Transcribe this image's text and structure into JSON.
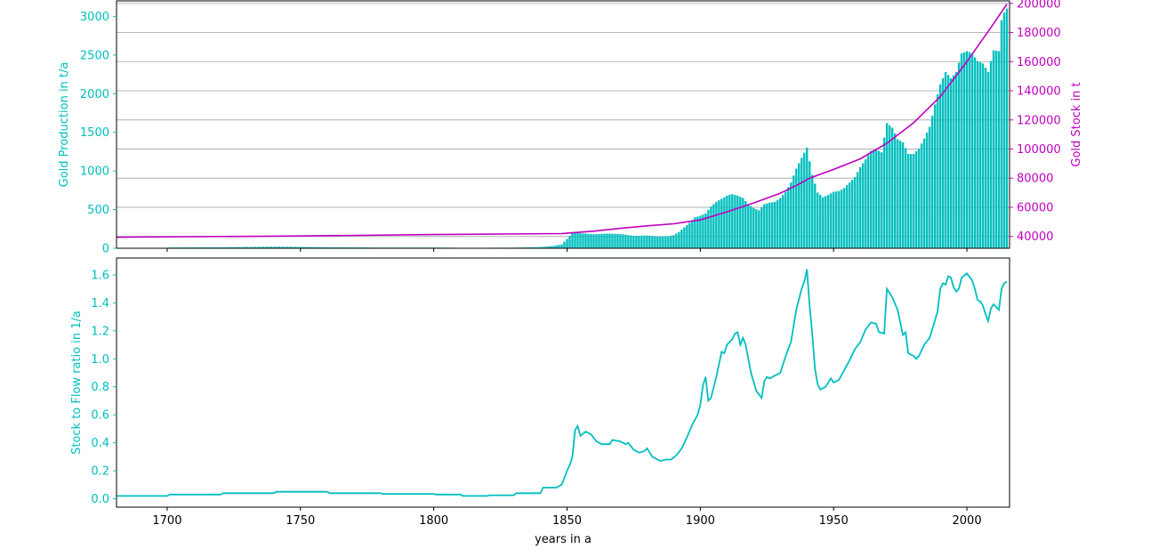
{
  "chart_data": [
    {
      "type": "bar",
      "title": "",
      "xlabel": "",
      "ylabel": "Gold Production in t/a",
      "y2label": "Gold Stock in t",
      "xlim": [
        1681,
        2016
      ],
      "ylim": [
        0,
        3200
      ],
      "y2lim": [
        31900,
        201700
      ],
      "xticks": [
        1700,
        1750,
        1800,
        1850,
        1900,
        1950,
        2000
      ],
      "yticks": [
        0,
        500,
        1000,
        1500,
        2000,
        2500,
        3000
      ],
      "y2ticks": [
        40000,
        60000,
        80000,
        100000,
        120000,
        140000,
        160000,
        180000,
        200000
      ],
      "grid": "horizontal (right axis)",
      "colors": {
        "production": "#00bfbf",
        "stock": "#bf00bf"
      },
      "production_per_year": [
        [
          1701,
          10
        ],
        [
          1720,
          12
        ],
        [
          1741,
          20
        ],
        [
          1761,
          12
        ],
        [
          1781,
          9
        ],
        [
          1801,
          9
        ],
        [
          1811,
          5
        ],
        [
          1821,
          6
        ],
        [
          1830,
          8
        ],
        [
          1840,
          15
        ],
        [
          1845,
          30
        ],
        [
          1848,
          50
        ],
        [
          1850,
          120
        ],
        [
          1851,
          160
        ],
        [
          1852,
          200
        ],
        [
          1853,
          210
        ],
        [
          1855,
          195
        ],
        [
          1860,
          180
        ],
        [
          1865,
          190
        ],
        [
          1870,
          185
        ],
        [
          1875,
          160
        ],
        [
          1880,
          165
        ],
        [
          1885,
          150
        ],
        [
          1888,
          155
        ],
        [
          1890,
          170
        ],
        [
          1892,
          210
        ],
        [
          1894,
          270
        ],
        [
          1896,
          330
        ],
        [
          1898,
          400
        ],
        [
          1900,
          420
        ],
        [
          1902,
          450
        ],
        [
          1904,
          540
        ],
        [
          1906,
          600
        ],
        [
          1908,
          640
        ],
        [
          1910,
          680
        ],
        [
          1912,
          700
        ],
        [
          1914,
          680
        ],
        [
          1916,
          650
        ],
        [
          1918,
          570
        ],
        [
          1920,
          520
        ],
        [
          1922,
          490
        ],
        [
          1924,
          570
        ],
        [
          1926,
          590
        ],
        [
          1928,
          600
        ],
        [
          1930,
          650
        ],
        [
          1932,
          730
        ],
        [
          1934,
          850
        ],
        [
          1936,
          1030
        ],
        [
          1938,
          1170
        ],
        [
          1940,
          1300
        ],
        [
          1942,
          950
        ],
        [
          1944,
          720
        ],
        [
          1946,
          660
        ],
        [
          1948,
          690
        ],
        [
          1950,
          730
        ],
        [
          1952,
          740
        ],
        [
          1954,
          780
        ],
        [
          1956,
          850
        ],
        [
          1958,
          920
        ],
        [
          1960,
          1050
        ],
        [
          1962,
          1150
        ],
        [
          1964,
          1260
        ],
        [
          1966,
          1280
        ],
        [
          1968,
          1240
        ],
        [
          1970,
          1620
        ],
        [
          1972,
          1560
        ],
        [
          1974,
          1410
        ],
        [
          1976,
          1370
        ],
        [
          1978,
          1220
        ],
        [
          1980,
          1220
        ],
        [
          1982,
          1290
        ],
        [
          1984,
          1420
        ],
        [
          1986,
          1570
        ],
        [
          1988,
          1860
        ],
        [
          1990,
          2120
        ],
        [
          1992,
          2280
        ],
        [
          1994,
          2200
        ],
        [
          1996,
          2280
        ],
        [
          1998,
          2520
        ],
        [
          2000,
          2550
        ],
        [
          2002,
          2520
        ],
        [
          2004,
          2420
        ],
        [
          2006,
          2390
        ],
        [
          2008,
          2280
        ],
        [
          2010,
          2560
        ],
        [
          2012,
          2550
        ],
        [
          2013,
          2950
        ],
        [
          2014,
          3050
        ],
        [
          2015,
          3100
        ]
      ],
      "stock_series": {
        "name": "",
        "points": [
          [
            1681,
            39500
          ],
          [
            1750,
            40300
          ],
          [
            1800,
            41300
          ],
          [
            1848,
            42000
          ],
          [
            1860,
            43600
          ],
          [
            1870,
            45600
          ],
          [
            1880,
            47300
          ],
          [
            1890,
            48700
          ],
          [
            1900,
            51300
          ],
          [
            1910,
            56900
          ],
          [
            1920,
            63000
          ],
          [
            1930,
            69700
          ],
          [
            1937,
            75800
          ],
          [
            1941,
            80000
          ],
          [
            1950,
            86000
          ],
          [
            1960,
            93300
          ],
          [
            1970,
            104000
          ],
          [
            1980,
            118000
          ],
          [
            1990,
            136000
          ],
          [
            2000,
            160000
          ],
          [
            2010,
            186000
          ],
          [
            2015,
            199500
          ]
        ]
      }
    },
    {
      "type": "line",
      "title": "",
      "xlabel": "years in a",
      "ylabel": "Stock to Flow ratio in 1/a",
      "xlim": [
        1681,
        2016
      ],
      "ylim": [
        -0.06,
        1.72
      ],
      "xticks": [
        1700,
        1750,
        1800,
        1850,
        1900,
        1950,
        2000
      ],
      "yticks": [
        0.0,
        0.2,
        0.4,
        0.6,
        0.8,
        1.0,
        1.2,
        1.4,
        1.6
      ],
      "ytick_labels": [
        "0.0",
        "0.2",
        "0.4",
        "0.6",
        "0.8",
        "1.0",
        "1.2",
        "1.4",
        "1.6"
      ],
      "color": "#00bfbf",
      "series": [
        {
          "name": "",
          "points": [
            [
              1681,
              0.02
            ],
            [
              1700,
              0.02
            ],
            [
              1701,
              0.03
            ],
            [
              1720,
              0.03
            ],
            [
              1721,
              0.04
            ],
            [
              1740,
              0.04
            ],
            [
              1741,
              0.05
            ],
            [
              1760,
              0.05
            ],
            [
              1761,
              0.04
            ],
            [
              1780,
              0.04
            ],
            [
              1781,
              0.035
            ],
            [
              1800,
              0.035
            ],
            [
              1801,
              0.03
            ],
            [
              1810,
              0.03
            ],
            [
              1811,
              0.02
            ],
            [
              1820,
              0.02
            ],
            [
              1821,
              0.025
            ],
            [
              1830,
              0.025
            ],
            [
              1831,
              0.04
            ],
            [
              1840,
              0.04
            ],
            [
              1841,
              0.08
            ],
            [
              1846,
              0.08
            ],
            [
              1848,
              0.1
            ],
            [
              1850,
              0.2
            ],
            [
              1851,
              0.24
            ],
            [
              1852,
              0.3
            ],
            [
              1853,
              0.49
            ],
            [
              1854,
              0.52
            ],
            [
              1855,
              0.45
            ],
            [
              1857,
              0.48
            ],
            [
              1859,
              0.46
            ],
            [
              1861,
              0.41
            ],
            [
              1863,
              0.39
            ],
            [
              1866,
              0.39
            ],
            [
              1867,
              0.42
            ],
            [
              1870,
              0.41
            ],
            [
              1872,
              0.39
            ],
            [
              1873,
              0.4
            ],
            [
              1875,
              0.35
            ],
            [
              1877,
              0.33
            ],
            [
              1879,
              0.34
            ],
            [
              1880,
              0.36
            ],
            [
              1882,
              0.3
            ],
            [
              1885,
              0.27
            ],
            [
              1887,
              0.28
            ],
            [
              1889,
              0.28
            ],
            [
              1891,
              0.31
            ],
            [
              1893,
              0.36
            ],
            [
              1895,
              0.44
            ],
            [
              1897,
              0.53
            ],
            [
              1899,
              0.6
            ],
            [
              1900,
              0.67
            ],
            [
              1901,
              0.81
            ],
            [
              1902,
              0.87
            ],
            [
              1903,
              0.7
            ],
            [
              1904,
              0.72
            ],
            [
              1906,
              0.87
            ],
            [
              1908,
              1.05
            ],
            [
              1909,
              1.04
            ],
            [
              1910,
              1.1
            ],
            [
              1912,
              1.14
            ],
            [
              1913,
              1.18
            ],
            [
              1914,
              1.19
            ],
            [
              1915,
              1.1
            ],
            [
              1916,
              1.15
            ],
            [
              1917,
              1.1
            ],
            [
              1919,
              0.9
            ],
            [
              1921,
              0.77
            ],
            [
              1923,
              0.72
            ],
            [
              1924,
              0.84
            ],
            [
              1925,
              0.87
            ],
            [
              1926,
              0.86
            ],
            [
              1928,
              0.88
            ],
            [
              1930,
              0.9
            ],
            [
              1932,
              1.02
            ],
            [
              1934,
              1.12
            ],
            [
              1936,
              1.35
            ],
            [
              1938,
              1.5
            ],
            [
              1939,
              1.55
            ],
            [
              1940,
              1.64
            ],
            [
              1941,
              1.38
            ],
            [
              1942,
              1.18
            ],
            [
              1943,
              0.93
            ],
            [
              1944,
              0.82
            ],
            [
              1945,
              0.78
            ],
            [
              1947,
              0.8
            ],
            [
              1949,
              0.86
            ],
            [
              1950,
              0.83
            ],
            [
              1952,
              0.85
            ],
            [
              1954,
              0.92
            ],
            [
              1956,
              0.99
            ],
            [
              1958,
              1.07
            ],
            [
              1960,
              1.12
            ],
            [
              1962,
              1.21
            ],
            [
              1964,
              1.26
            ],
            [
              1966,
              1.25
            ],
            [
              1967,
              1.19
            ],
            [
              1969,
              1.18
            ],
            [
              1970,
              1.5
            ],
            [
              1972,
              1.44
            ],
            [
              1974,
              1.35
            ],
            [
              1976,
              1.17
            ],
            [
              1977,
              1.19
            ],
            [
              1978,
              1.04
            ],
            [
              1980,
              1.02
            ],
            [
              1981,
              1.0
            ],
            [
              1982,
              1.02
            ],
            [
              1984,
              1.1
            ],
            [
              1986,
              1.15
            ],
            [
              1987,
              1.21
            ],
            [
              1989,
              1.34
            ],
            [
              1990,
              1.5
            ],
            [
              1991,
              1.54
            ],
            [
              1992,
              1.53
            ],
            [
              1993,
              1.59
            ],
            [
              1994,
              1.58
            ],
            [
              1995,
              1.51
            ],
            [
              1996,
              1.48
            ],
            [
              1997,
              1.5
            ],
            [
              1998,
              1.58
            ],
            [
              2000,
              1.61
            ],
            [
              2002,
              1.56
            ],
            [
              2003,
              1.5
            ],
            [
              2004,
              1.42
            ],
            [
              2005,
              1.41
            ],
            [
              2006,
              1.38
            ],
            [
              2007,
              1.32
            ],
            [
              2008,
              1.27
            ],
            [
              2009,
              1.36
            ],
            [
              2010,
              1.39
            ],
            [
              2012,
              1.35
            ],
            [
              2013,
              1.5
            ],
            [
              2014,
              1.54
            ],
            [
              2015,
              1.55
            ]
          ]
        }
      ]
    }
  ]
}
